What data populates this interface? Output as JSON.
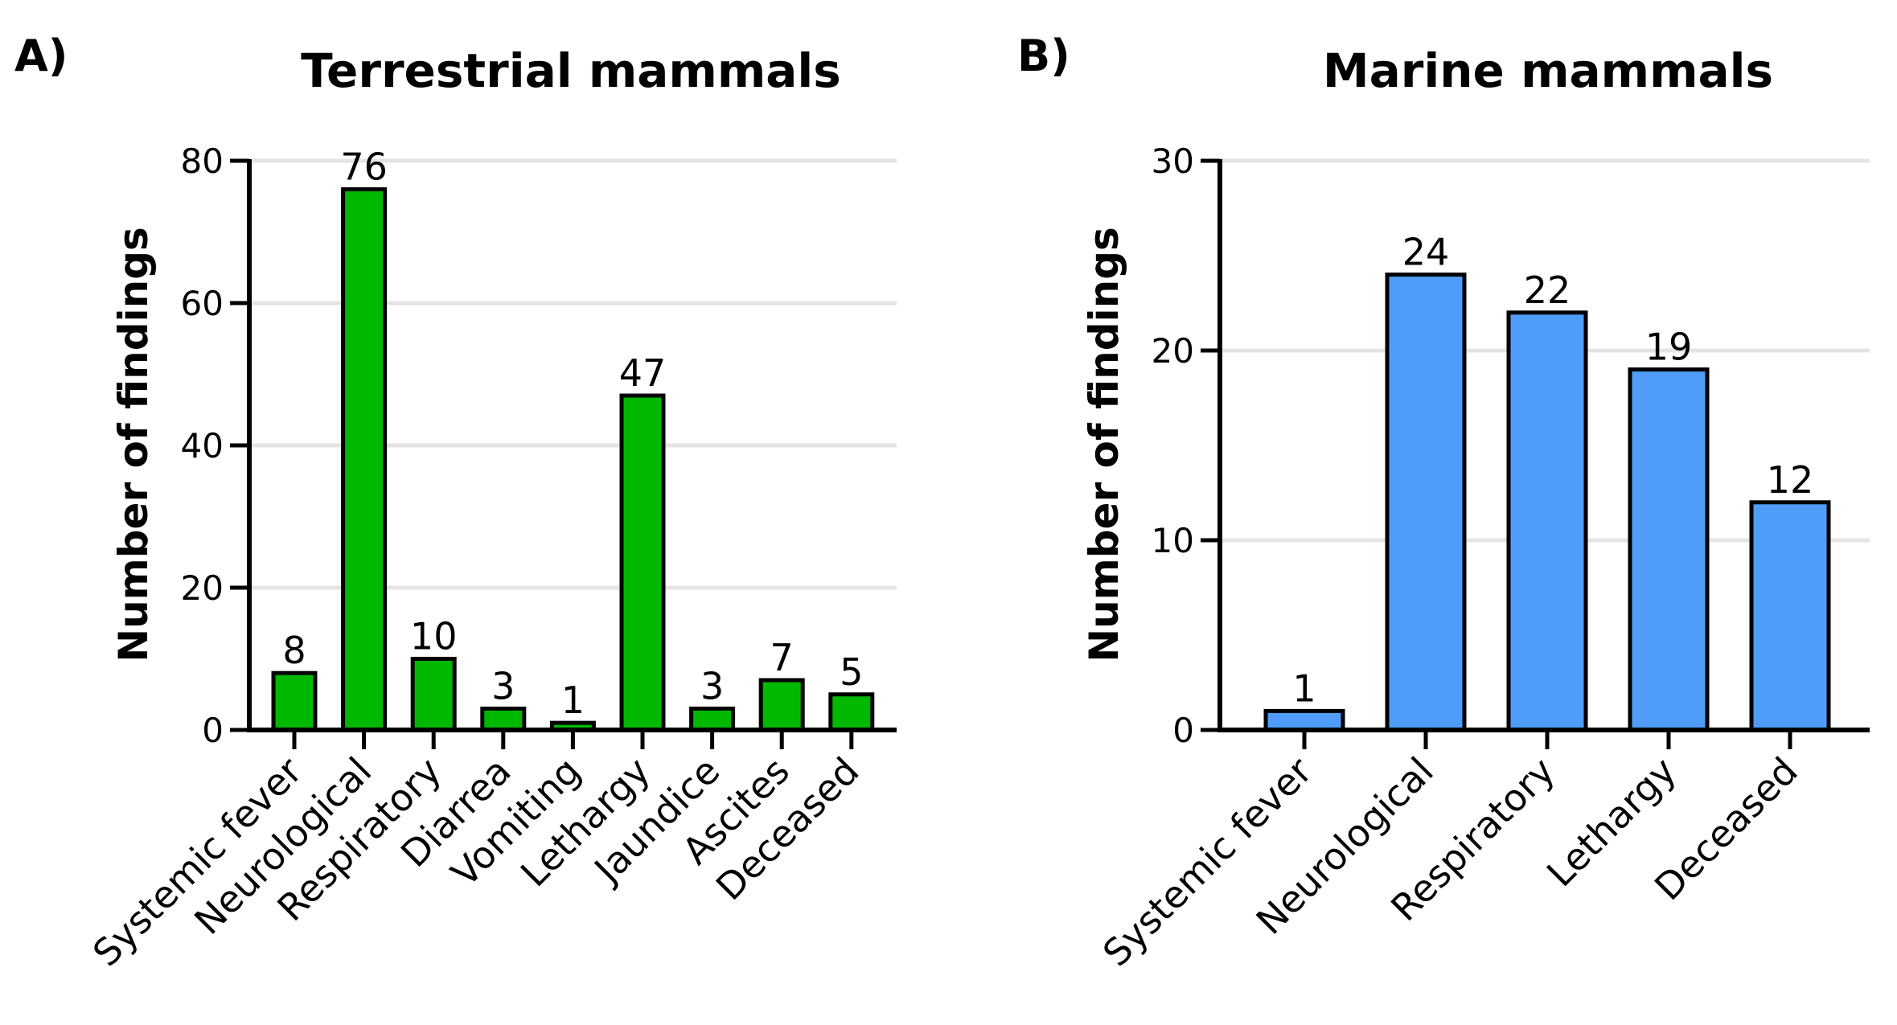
{
  "chart_data": [
    {
      "type": "bar",
      "panel": "A)",
      "title": "Terrestrial mammals",
      "xlabel": "",
      "ylabel": "Number of findings",
      "categories": [
        "Systemic fever",
        "Neurological",
        "Respiratory",
        "Diarrea",
        "Vomiting",
        "Lethargy",
        "Jaundice",
        "Ascites",
        "Deceased"
      ],
      "values": [
        8,
        76,
        10,
        3,
        1,
        47,
        3,
        7,
        5
      ],
      "ylim": [
        0,
        80
      ],
      "yticks": [
        0,
        20,
        40,
        60,
        80
      ],
      "grid": true,
      "color": "#00b800"
    },
    {
      "type": "bar",
      "panel": "B)",
      "title": "Marine mammals",
      "xlabel": "",
      "ylabel": "Number of findings",
      "categories": [
        "Systemic fever",
        "Neurological",
        "Respiratory",
        "Lethargy",
        "Deceased"
      ],
      "values": [
        1,
        24,
        22,
        19,
        12
      ],
      "ylim": [
        0,
        30
      ],
      "yticks": [
        0,
        10,
        20,
        30
      ],
      "grid": true,
      "color": "#4f9df8"
    }
  ]
}
